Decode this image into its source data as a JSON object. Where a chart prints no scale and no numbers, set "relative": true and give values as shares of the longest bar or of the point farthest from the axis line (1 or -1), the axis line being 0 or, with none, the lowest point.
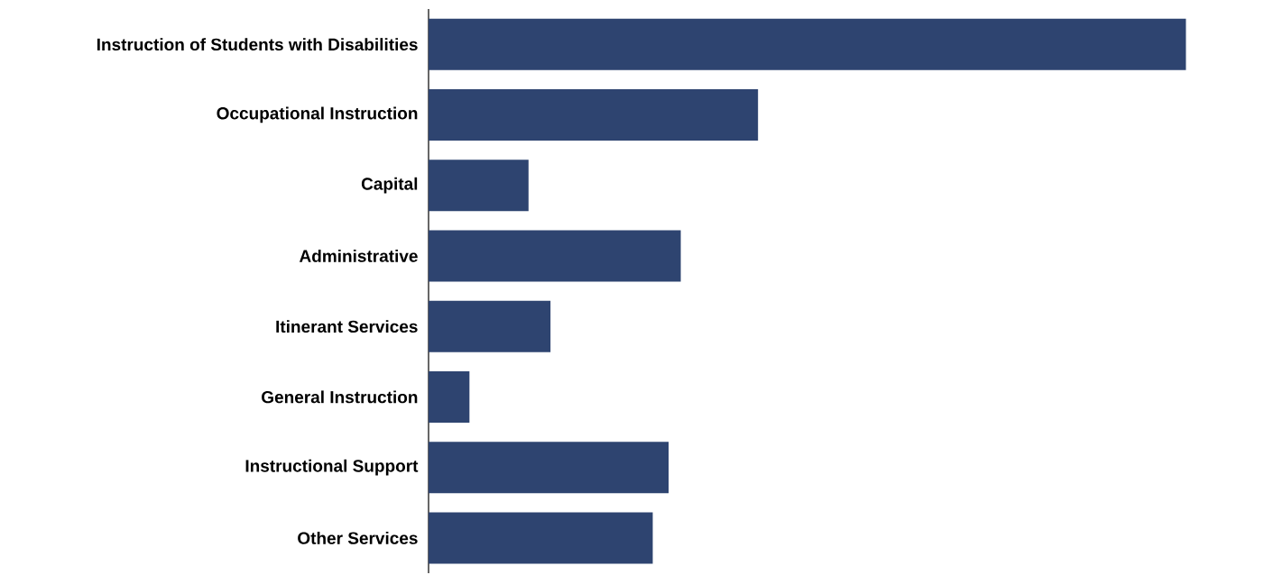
{
  "chart_data": {
    "type": "bar",
    "orientation": "horizontal",
    "relative": true,
    "color": "#2e4470",
    "categories": [
      "Instruction of Students with Disabilities",
      "Occupational Instruction",
      "Capital",
      "Administrative",
      "Itinerant Services",
      "General Instruction",
      "Instructional Support",
      "Other Services"
    ],
    "values": [
      1,
      0.435,
      0.132,
      0.333,
      0.161,
      0.054,
      0.317,
      0.296
    ]
  }
}
